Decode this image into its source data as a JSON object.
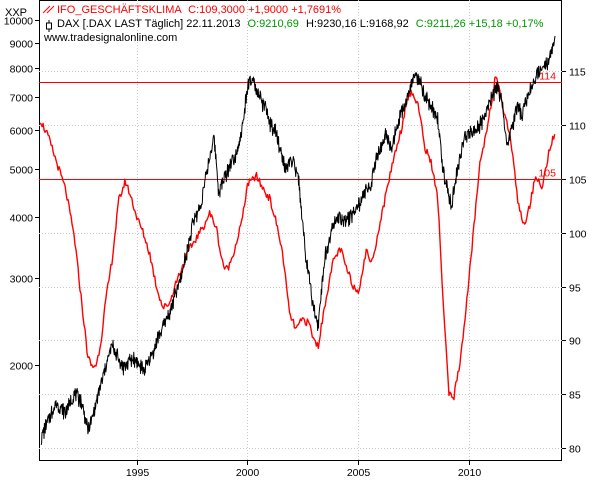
{
  "chart_data": {
    "type": "line",
    "symbol_label": "XXP",
    "watermark": "www.tradesignalonline.com",
    "legend": [
      {
        "name": "IFO_GESCHÄFTSKLIMA",
        "values_text": "C:109,3000 +1,9000 +1,7691%",
        "color": "#ff0000",
        "value_color": "#ff0000"
      },
      {
        "name": "DAX [.DAX LAST Täglich] 22.11.2013",
        "values_text": "O:9210,69 H:9230,16 L:9168,92 C:9211,26 +15,18 +0,17%",
        "o_text": "O:9210,69",
        "hl_text": "H:9230,16 L:9168,92",
        "c_text": "C:9211,26 +15,18 +0,17%",
        "color": "#000000"
      }
    ],
    "x_axis": {
      "range": [
        1990.6,
        2014.2
      ],
      "ticks": [
        1995,
        2000,
        2005,
        2010
      ],
      "tick_labels": [
        "1995",
        "2000",
        "2005",
        "2010"
      ]
    },
    "left_axis": {
      "scale": "log",
      "range": [
        1280,
        11000
      ],
      "ticks": [
        2000,
        3000,
        4000,
        5000,
        6000,
        7000,
        8000,
        9000,
        10000
      ],
      "tick_labels": [
        "2000",
        "3000",
        "4000",
        "5000",
        "6000",
        "7000",
        "8000",
        "9000",
        "10000"
      ]
    },
    "right_axis": {
      "scale": "linear",
      "range": [
        78.8,
        121.6
      ],
      "ticks": [
        80,
        85,
        90,
        95,
        100,
        105,
        110,
        115
      ],
      "tick_labels": [
        "80",
        "85",
        "90",
        "95",
        "100",
        "105",
        "110",
        "115"
      ]
    },
    "reference_lines": [
      {
        "value": 114,
        "label": "114",
        "color": "#ff0000"
      },
      {
        "value": 105,
        "label": "105",
        "color": "#ff0000"
      }
    ],
    "series": [
      {
        "name": "IFO_GESCHÄFTSKLIMA",
        "axis": "right",
        "color": "#ff0000",
        "x": [
          1990.65,
          1991.0,
          1991.4,
          1991.8,
          1992.2,
          1992.5,
          1992.8,
          1993.0,
          1993.2,
          1993.4,
          1993.6,
          1993.9,
          1994.2,
          1994.5,
          1994.8,
          1995.0,
          1995.3,
          1995.6,
          1995.9,
          1996.2,
          1996.5,
          1996.8,
          1997.1,
          1997.4,
          1997.7,
          1998.0,
          1998.3,
          1998.6,
          1998.8,
          1999.0,
          1999.2,
          1999.5,
          1999.8,
          2000.0,
          2000.2,
          2000.4,
          2000.6,
          2000.8,
          2001.0,
          2001.3,
          2001.6,
          2001.9,
          2002.2,
          2002.5,
          2002.8,
          2003.0,
          2003.2,
          2003.4,
          2003.6,
          2003.9,
          2004.2,
          2004.5,
          2004.8,
          2005.0,
          2005.2,
          2005.4,
          2005.6,
          2005.9,
          2006.2,
          2006.5,
          2006.8,
          2007.0,
          2007.2,
          2007.4,
          2007.7,
          2008.0,
          2008.3,
          2008.6,
          2008.8,
          2009.0,
          2009.1,
          2009.3,
          2009.6,
          2009.9,
          2010.2,
          2010.5,
          2010.8,
          2011.0,
          2011.2,
          2011.5,
          2011.8,
          2012.0,
          2012.2,
          2012.5,
          2012.8,
          2013.0,
          2013.3,
          2013.6,
          2013.9
        ],
        "values": [
          110.5,
          109.0,
          106.5,
          104.0,
          99.5,
          94.0,
          88.5,
          87.5,
          87.8,
          90.0,
          93.5,
          97.5,
          103.0,
          104.8,
          103.0,
          101.5,
          100.0,
          98.0,
          95.0,
          93.0,
          93.5,
          95.5,
          97.0,
          98.5,
          99.5,
          100.5,
          101.8,
          100.5,
          98.0,
          96.5,
          97.0,
          99.0,
          101.5,
          104.5,
          104.8,
          105.3,
          104.5,
          103.8,
          103.2,
          101.0,
          98.0,
          92.5,
          91.0,
          92.0,
          91.5,
          90.0,
          89.5,
          92.0,
          94.5,
          97.5,
          98.5,
          96.5,
          95.0,
          94.5,
          96.5,
          98.5,
          97.0,
          100.0,
          103.0,
          106.0,
          108.5,
          110.0,
          112.5,
          113.0,
          112.0,
          108.0,
          106.5,
          103.0,
          95.0,
          88.0,
          85.0,
          84.5,
          88.0,
          93.5,
          100.0,
          106.5,
          109.5,
          112.0,
          114.5,
          112.0,
          109.5,
          107.0,
          103.0,
          100.5,
          103.0,
          105.5,
          104.0,
          107.5,
          109.3
        ]
      },
      {
        "name": "DAX [.DAX LAST Täglich]",
        "axis": "left",
        "color": "#000000",
        "x": [
          1990.7,
          1991.0,
          1991.4,
          1991.8,
          1992.2,
          1992.5,
          1992.8,
          1993.0,
          1993.3,
          1993.6,
          1993.9,
          1994.1,
          1994.4,
          1994.7,
          1995.0,
          1995.3,
          1995.7,
          1996.0,
          1996.5,
          1997.0,
          1997.3,
          1997.6,
          1997.9,
          1998.2,
          1998.5,
          1998.7,
          1998.9,
          1999.2,
          1999.5,
          1999.8,
          2000.0,
          2000.2,
          2000.5,
          2000.8,
          2001.0,
          2001.3,
          2001.7,
          2002.0,
          2002.3,
          2002.6,
          2002.8,
          2003.0,
          2003.2,
          2003.5,
          2003.8,
          2004.1,
          2004.5,
          2004.8,
          2005.2,
          2005.6,
          2005.9,
          2006.3,
          2006.5,
          2006.8,
          2007.2,
          2007.5,
          2007.8,
          2008.0,
          2008.3,
          2008.6,
          2008.8,
          2009.0,
          2009.2,
          2009.5,
          2009.8,
          2010.2,
          2010.6,
          2011.0,
          2011.3,
          2011.5,
          2011.7,
          2011.9,
          2012.2,
          2012.4,
          2012.7,
          2013.0,
          2013.3,
          2013.6,
          2013.9
        ],
        "values": [
          1420,
          1550,
          1680,
          1600,
          1750,
          1700,
          1480,
          1550,
          1750,
          1980,
          2200,
          2100,
          1980,
          2050,
          2050,
          1950,
          2100,
          2300,
          2550,
          3000,
          3450,
          3950,
          4200,
          5000,
          5800,
          4500,
          4700,
          5100,
          5400,
          6100,
          7300,
          7600,
          7000,
          6700,
          6200,
          5900,
          5000,
          5200,
          4800,
          3400,
          3000,
          2600,
          2400,
          3300,
          3800,
          4000,
          3900,
          4100,
          4350,
          4700,
          5400,
          5900,
          5500,
          6200,
          6900,
          7800,
          7600,
          7000,
          6700,
          6300,
          5000,
          4600,
          4200,
          5000,
          5800,
          6000,
          6200,
          7000,
          7300,
          6800,
          5500,
          6000,
          6700,
          6400,
          7100,
          7700,
          7900,
          8300,
          9200
        ]
      }
    ]
  }
}
